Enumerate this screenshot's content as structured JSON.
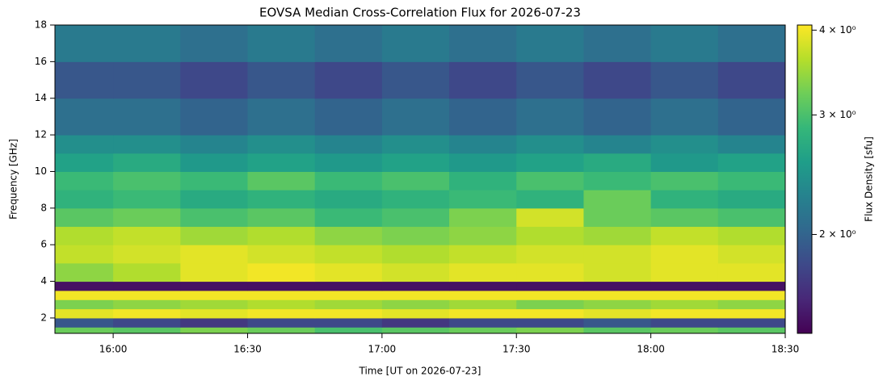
{
  "chart_data": {
    "type": "heatmap",
    "title": "EOVSA Median Cross-Correlation Flux for 2026-07-23",
    "x_label": "Time [UT on 2026-07-23]",
    "y_label": "Frequency [GHz]",
    "colorbar_label": "Flux Density [sfu]",
    "colormap": "viridis",
    "color_scale": "log",
    "xlim": [
      "15:47",
      "18:30"
    ],
    "xticks": [
      "16:00",
      "16:30",
      "17:00",
      "17:30",
      "18:00",
      "18:30"
    ],
    "ylim": [
      1.16,
      18
    ],
    "yticks": [
      2,
      4,
      6,
      8,
      10,
      12,
      14,
      16,
      18
    ],
    "clim": [
      1.43,
      4.07
    ],
    "cticks": [
      {
        "value": 2,
        "label": "2 × 10⁰"
      },
      {
        "value": 3,
        "label": "3 × 10⁰"
      },
      {
        "value": 4,
        "label": "4 × 10⁰"
      }
    ],
    "x_bins": [
      "15:47",
      "16:00",
      "16:15",
      "16:30",
      "16:45",
      "17:00",
      "17:15",
      "17:30",
      "17:45",
      "18:00",
      "18:15",
      "18:30"
    ],
    "y_bins": [
      1.16,
      1.5,
      2,
      2.5,
      3,
      3.5,
      4,
      5,
      6,
      7,
      8,
      9,
      10,
      11,
      12,
      14,
      16,
      18
    ],
    "z": [
      [
        3.2,
        3.1,
        3.3,
        3.2,
        3.0,
        3.1,
        3.2,
        3.3,
        3.1,
        3.2,
        3.1
      ],
      [
        1.9,
        1.8,
        1.7,
        1.8,
        1.8,
        1.7,
        1.8,
        1.8,
        1.9,
        1.8,
        1.8
      ],
      [
        3.9,
        4.0,
        3.9,
        4.0,
        4.0,
        3.9,
        4.0,
        4.0,
        3.9,
        4.0,
        4.0
      ],
      [
        3.3,
        3.4,
        3.5,
        3.6,
        3.5,
        3.4,
        3.5,
        3.3,
        3.4,
        3.5,
        3.4
      ],
      [
        4.0,
        4.0,
        4.0,
        4.0,
        4.0,
        4.0,
        4.0,
        4.0,
        4.0,
        4.0,
        4.0
      ],
      [
        1.5,
        1.5,
        1.5,
        1.5,
        1.5,
        1.5,
        1.5,
        1.5,
        1.5,
        1.5,
        1.5
      ],
      [
        3.4,
        3.6,
        3.9,
        4.0,
        3.9,
        3.8,
        3.9,
        3.9,
        3.8,
        3.9,
        3.9
      ],
      [
        3.7,
        3.8,
        3.9,
        3.8,
        3.7,
        3.6,
        3.7,
        3.8,
        3.8,
        3.9,
        3.8
      ],
      [
        3.6,
        3.7,
        3.5,
        3.6,
        3.4,
        3.3,
        3.4,
        3.6,
        3.5,
        3.7,
        3.6
      ],
      [
        3.1,
        3.2,
        3.0,
        3.1,
        2.9,
        3.0,
        3.3,
        3.8,
        3.2,
        3.1,
        3.0
      ],
      [
        2.8,
        2.9,
        2.7,
        2.8,
        2.7,
        2.8,
        2.9,
        2.8,
        3.2,
        2.8,
        2.7
      ],
      [
        2.9,
        3.0,
        2.9,
        3.1,
        2.9,
        3.0,
        2.8,
        3.0,
        2.9,
        3.0,
        2.9
      ],
      [
        2.6,
        2.7,
        2.5,
        2.6,
        2.5,
        2.6,
        2.5,
        2.6,
        2.7,
        2.5,
        2.6
      ],
      [
        2.4,
        2.4,
        2.3,
        2.4,
        2.3,
        2.4,
        2.3,
        2.4,
        2.3,
        2.4,
        2.3
      ],
      [
        2.1,
        2.1,
        2.0,
        2.1,
        2.0,
        2.1,
        2.0,
        2.1,
        2.0,
        2.1,
        2.0
      ],
      [
        1.9,
        1.9,
        1.8,
        1.9,
        1.8,
        1.9,
        1.8,
        1.9,
        1.8,
        1.9,
        1.8
      ],
      [
        2.2,
        2.2,
        2.1,
        2.2,
        2.1,
        2.2,
        2.1,
        2.2,
        2.1,
        2.2,
        2.1
      ]
    ]
  }
}
